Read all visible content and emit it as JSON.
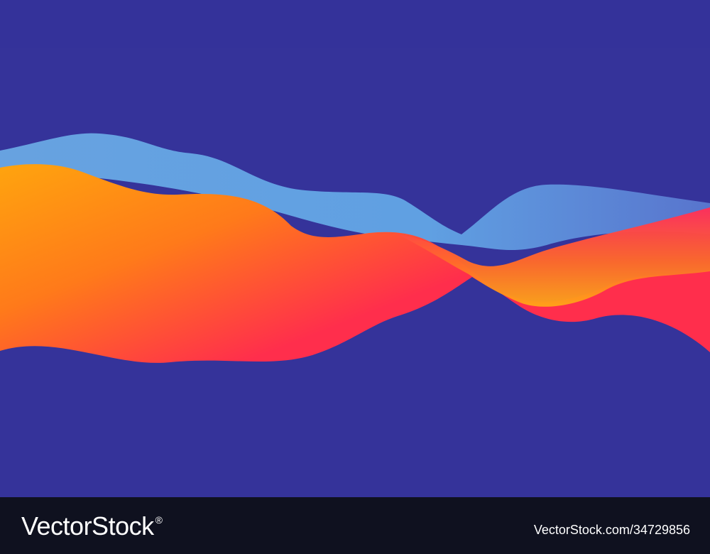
{
  "footer": {
    "brand": "VectorStock",
    "mark": "®",
    "url": "VectorStock.com/34729856"
  }
}
